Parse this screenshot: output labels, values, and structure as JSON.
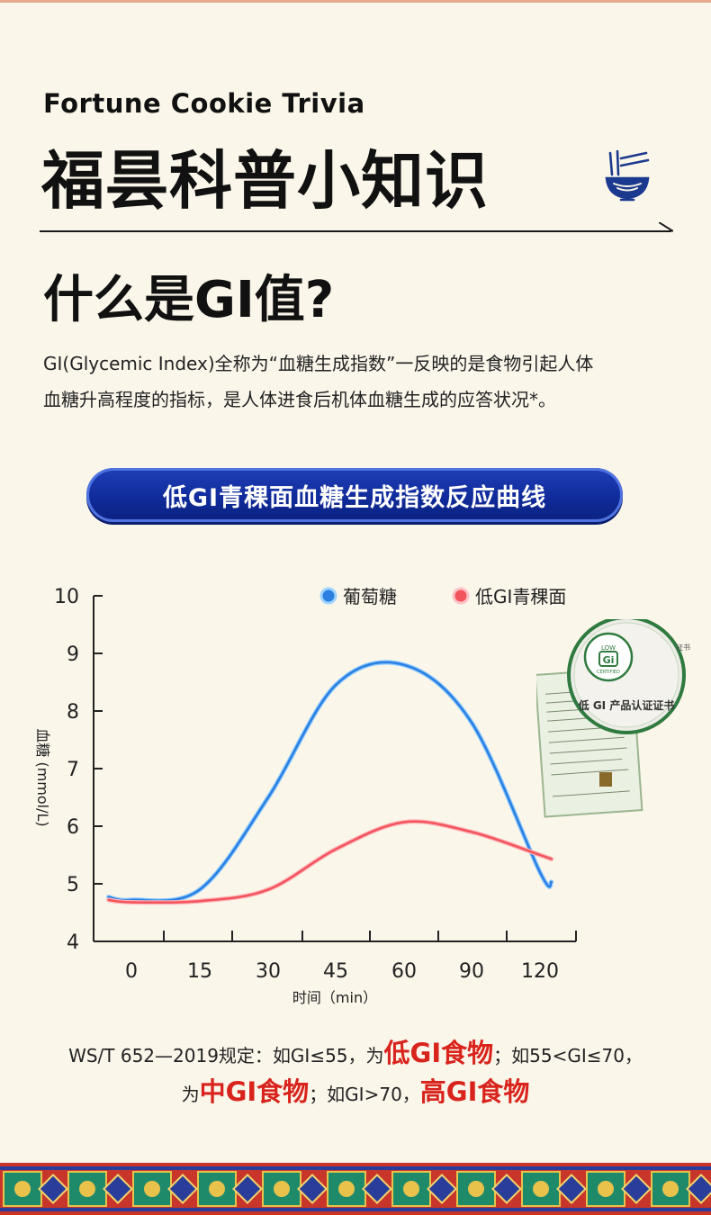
{
  "brand": {
    "english": "Fortune Cookie Trivia",
    "chinese": "福昙科普小知识"
  },
  "icon": {
    "name": "noodle-bowl-icon"
  },
  "section": {
    "title": "什么是GI值?",
    "description_line1": "GI(Glycemic Index)全称为“血糖生成指数”一反映的是食物引起人体",
    "description_line2": "血糖升高程度的指标，是人体进食后机体血糖生成的应答状况*。"
  },
  "chart_title": "低GI青稞面血糖生成指数反应曲线",
  "chart_data": {
    "type": "line",
    "ylabel": "血糖 (mmol/L)",
    "xlabel": "时间（min）",
    "ylim": [
      4,
      10
    ],
    "yticks": [
      "10",
      "9",
      "8",
      "7",
      "6",
      "5",
      "4"
    ],
    "xticks": [
      "0",
      "15",
      "30",
      "45",
      "60",
      "90",
      "120"
    ],
    "x": [
      -5,
      0,
      15,
      30,
      45,
      60,
      90,
      120,
      125
    ],
    "series": [
      {
        "name": "葡萄糖",
        "color": "#2a7fe0",
        "values": [
          4.77,
          4.72,
          4.9,
          6.5,
          8.45,
          8.8,
          7.8,
          5.2,
          5.03
        ]
      },
      {
        "name": "低GI青稞面",
        "color": "#f2545c",
        "values": [
          4.72,
          4.68,
          4.7,
          4.9,
          5.6,
          6.07,
          5.9,
          5.5,
          5.43
        ]
      }
    ],
    "legend_position": "top"
  },
  "certificate": {
    "seal_text": "LOW GI CERTIFIED",
    "title": "低 GI 产品认证证书"
  },
  "standard": {
    "prefix": "WS/T 652—2019规定：如GI≤55，为",
    "low_label": "低GI食物",
    "mid_prefix": "；如55<GI≤70，",
    "line2_prefix": "为",
    "mid_label": "中GI食物",
    "high_prefix": "；如GI>70，",
    "high_label": "高GI食物"
  },
  "colors": {
    "accent_blue": "#1f3fb7",
    "accent_red": "#d8241d",
    "background": "#fbf6ea"
  }
}
